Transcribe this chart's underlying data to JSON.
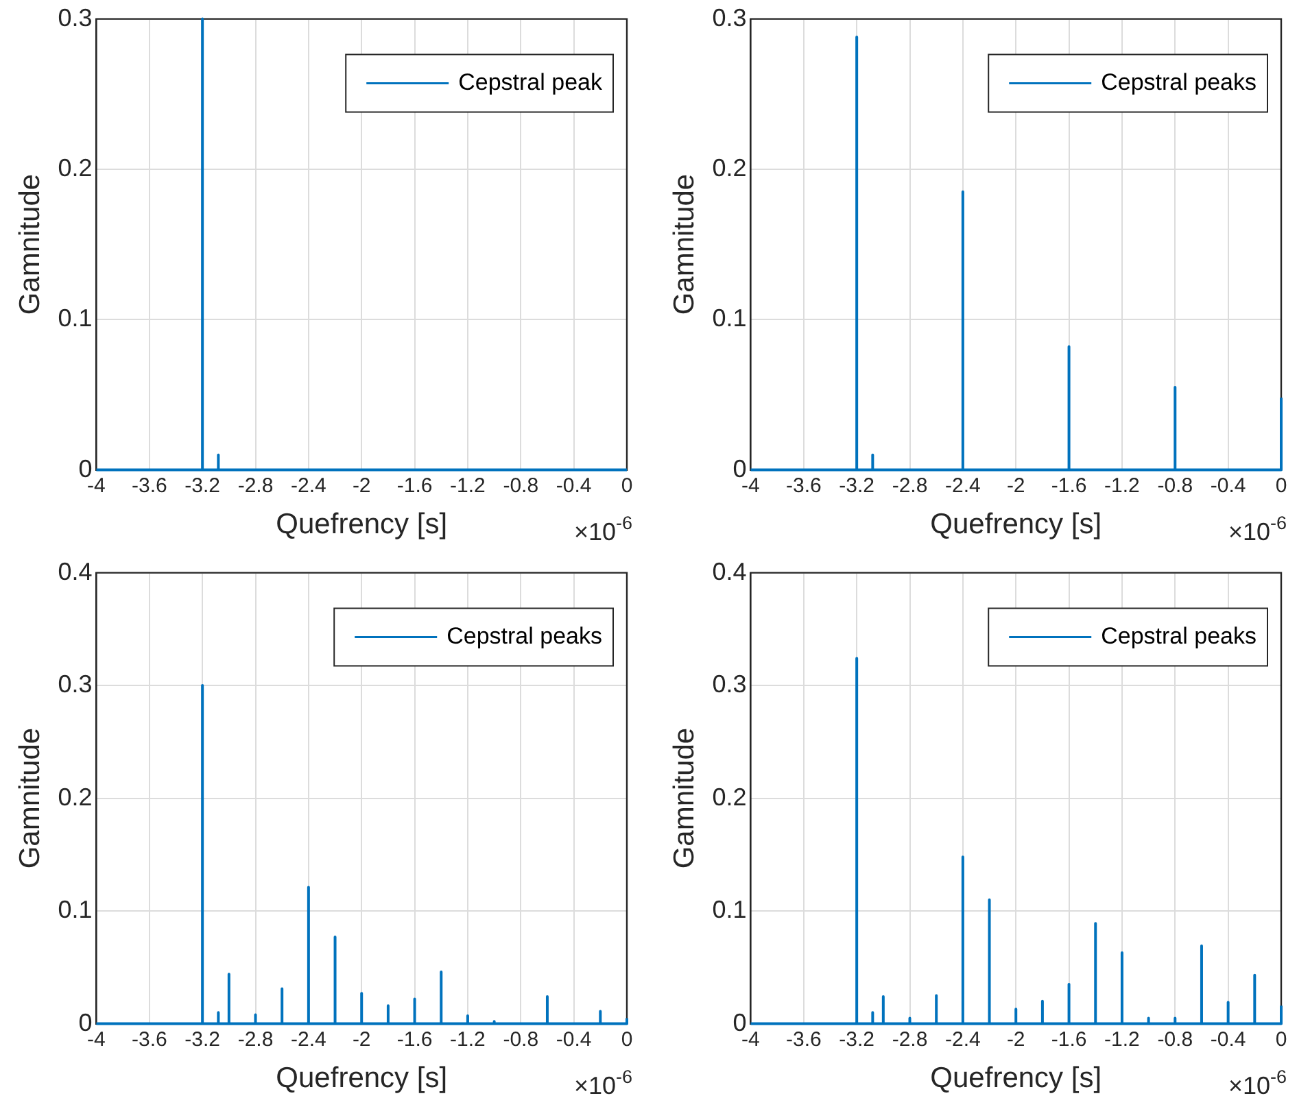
{
  "chart_data": [
    {
      "type": "line",
      "xlabel": "Quefrency [s]",
      "ylabel": "Gamnitude",
      "annotations": [
        "×10$^{-6}$"
      ],
      "legend": "top right",
      "grid": true,
      "xlim": [
        -4,
        0
      ],
      "xticks": [
        -4,
        -3.6,
        -3.2,
        -2.8,
        -2.4,
        -2,
        -1.6,
        -1.2,
        -0.8,
        -0.4,
        0
      ],
      "ylim": [
        0,
        0.3
      ],
      "yticks": [
        0,
        0.1,
        0.2,
        0.3
      ],
      "x": [
        -4,
        -3.2,
        -3.2,
        -3.2,
        -3.08,
        -3.08,
        -3.08,
        0
      ],
      "series": [
        {
          "name": "Cepstral peak",
          "color": "#0072bd",
          "values": [
            0,
            0,
            0.3,
            0,
            0,
            0.01,
            0,
            0
          ]
        }
      ]
    },
    {
      "type": "line",
      "xlabel": "Quefrency [s]",
      "ylabel": "Gamnitude",
      "annotations": [
        "×10$^{-6}$"
      ],
      "legend": "top right",
      "grid": true,
      "xlim": [
        -4,
        0
      ],
      "xticks": [
        -4,
        -3.6,
        -3.2,
        -2.8,
        -2.4,
        -2,
        -1.6,
        -1.2,
        -0.8,
        -0.4,
        0
      ],
      "ylim": [
        0,
        0.3
      ],
      "yticks": [
        0,
        0.1,
        0.2,
        0.3
      ],
      "x": [
        -4,
        -3.2,
        -3.2,
        -3.2,
        -3.08,
        -3.08,
        -3.08,
        -2.4,
        -2.4,
        -2.4,
        -1.6,
        -1.6,
        -1.6,
        -0.8,
        -0.8,
        -0.8,
        0,
        0
      ],
      "series": [
        {
          "name": "Cepstral peaks",
          "color": "#0072bd",
          "values": [
            0,
            0,
            0.288,
            0,
            0,
            0.01,
            0,
            0,
            0.185,
            0,
            0,
            0.082,
            0,
            0,
            0.055,
            0,
            0,
            0.048
          ]
        }
      ]
    },
    {
      "type": "line",
      "xlabel": "Quefrency [s]",
      "ylabel": "Gamnitude",
      "annotations": [
        "×10$^{-6}$"
      ],
      "legend": "top right",
      "grid": true,
      "xlim": [
        -4,
        0
      ],
      "xticks": [
        -4,
        -3.6,
        -3.2,
        -2.8,
        -2.4,
        -2,
        -1.6,
        -1.2,
        -0.8,
        -0.4,
        0
      ],
      "ylim": [
        0,
        0.4
      ],
      "yticks": [
        0,
        0.1,
        0.2,
        0.3,
        0.4
      ],
      "x": [
        -4,
        -3.2,
        -3.2,
        -3.2,
        -3.08,
        -3.08,
        -3.08,
        -3,
        -3,
        -3,
        -2.8,
        -2.8,
        -2.8,
        -2.6,
        -2.6,
        -2.6,
        -2.4,
        -2.4,
        -2.4,
        -2.2,
        -2.2,
        -2.2,
        -2,
        -2,
        -2,
        -1.8,
        -1.8,
        -1.8,
        -1.6,
        -1.6,
        -1.6,
        -1.4,
        -1.4,
        -1.4,
        -1.2,
        -1.2,
        -1.2,
        -1,
        -1,
        -1,
        -0.6,
        -0.6,
        -0.6,
        -0.2,
        -0.2,
        -0.2,
        0,
        0
      ],
      "series": [
        {
          "name": "Cepstral peaks",
          "color": "#0072bd",
          "values": [
            0,
            0,
            0.3,
            0,
            0,
            0.01,
            0,
            0,
            0.044,
            0,
            0,
            0.008,
            0,
            0,
            0.031,
            0,
            0,
            0.121,
            0,
            0,
            0.077,
            0,
            0,
            0.027,
            0,
            0,
            0.016,
            0,
            0,
            0.022,
            0,
            0,
            0.046,
            0,
            0,
            0.007,
            0,
            0,
            0.002,
            0,
            0,
            0.024,
            0,
            0,
            0.011,
            0,
            0,
            0.005
          ]
        }
      ]
    },
    {
      "type": "line",
      "xlabel": "Quefrency [s]",
      "ylabel": "Gamnitude",
      "annotations": [
        "×10$^{-6}$"
      ],
      "legend": "top right",
      "grid": true,
      "xlim": [
        -4,
        0
      ],
      "xticks": [
        -4,
        -3.6,
        -3.2,
        -2.8,
        -2.4,
        -2,
        -1.6,
        -1.2,
        -0.8,
        -0.4,
        0
      ],
      "ylim": [
        0,
        0.4
      ],
      "yticks": [
        0,
        0.1,
        0.2,
        0.3,
        0.4
      ],
      "x": [
        -4,
        -3.2,
        -3.2,
        -3.2,
        -3.08,
        -3.08,
        -3.08,
        -3,
        -3,
        -3,
        -2.8,
        -2.8,
        -2.8,
        -2.6,
        -2.6,
        -2.6,
        -2.4,
        -2.4,
        -2.4,
        -2.2,
        -2.2,
        -2.2,
        -2,
        -2,
        -2,
        -1.8,
        -1.8,
        -1.8,
        -1.6,
        -1.6,
        -1.6,
        -1.4,
        -1.4,
        -1.4,
        -1.2,
        -1.2,
        -1.2,
        -1,
        -1,
        -1,
        -0.8,
        -0.8,
        -0.8,
        -0.6,
        -0.6,
        -0.6,
        -0.4,
        -0.4,
        -0.4,
        -0.2,
        -0.2,
        -0.2,
        0,
        0
      ],
      "series": [
        {
          "name": "Cepstral peaks",
          "color": "#0072bd",
          "values": [
            0,
            0,
            0.324,
            0,
            0,
            0.01,
            0,
            0,
            0.024,
            0,
            0,
            0.005,
            0,
            0,
            0.025,
            0,
            0,
            0.148,
            0,
            0,
            0.11,
            0,
            0,
            0.013,
            0,
            0,
            0.02,
            0,
            0,
            0.035,
            0,
            0,
            0.089,
            0,
            0,
            0.063,
            0,
            0,
            0.005,
            0,
            0,
            0.005,
            0,
            0,
            0.069,
            0,
            0,
            0.019,
            0,
            0,
            0.043,
            0,
            0,
            0.016
          ]
        }
      ]
    }
  ]
}
